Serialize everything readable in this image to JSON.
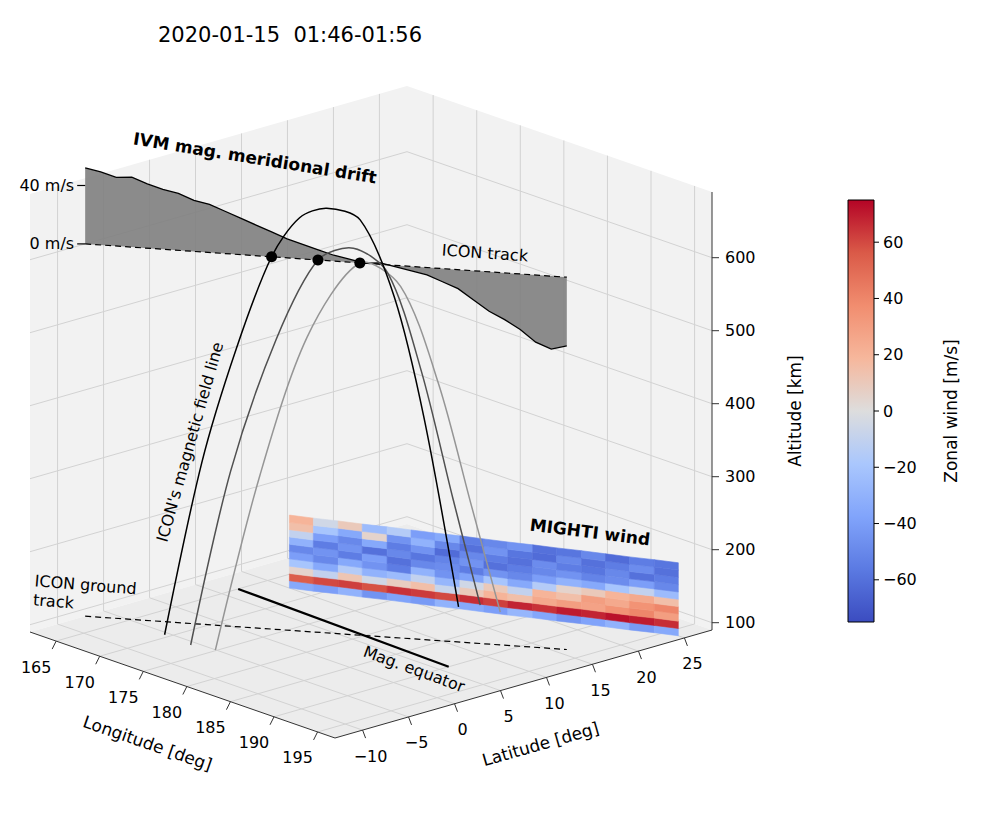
{
  "chart_data": {
    "type": "3d",
    "title": "2020-01-15  01:46-01:56",
    "xlabel": "Longitude [deg]",
    "ylabel": "Latitude [deg]",
    "zlabel": "Altitude [km]",
    "xlim": [
      162,
      197
    ],
    "xticks": [
      165,
      170,
      175,
      180,
      185,
      190,
      195
    ],
    "ylim": [
      -13,
      28
    ],
    "yticks": [
      {
        "value": -10,
        "label": "−10"
      },
      {
        "value": -5,
        "label": "−5"
      },
      0,
      5,
      10,
      15,
      20,
      25
    ],
    "zlim": [
      90,
      690
    ],
    "zticks": [
      100,
      200,
      300,
      400,
      500,
      600
    ],
    "grid": true,
    "ground_track": {
      "label": "ICON ground track",
      "lon": [
        162,
        193
      ],
      "lat": [
        -7,
        16
      ],
      "line_style": "dashed",
      "color": "#000000"
    },
    "icon_track": {
      "label": "ICON track",
      "lon": [
        162,
        193
      ],
      "lat": [
        -7,
        16
      ],
      "altitude": 600,
      "line_style": "dashed",
      "color": "#000000"
    },
    "ivm_drift": {
      "label": "IVM mag. meridional drift",
      "color": "#808080",
      "lon": [
        162,
        163,
        164,
        165,
        166,
        167,
        168,
        169,
        170,
        171,
        172,
        173,
        174,
        175,
        176,
        177,
        178,
        179,
        180,
        181,
        182,
        183,
        184,
        185,
        186,
        187,
        188,
        189,
        190,
        191,
        192,
        193
      ],
      "values": [
        52,
        50,
        47,
        48,
        44,
        41,
        39,
        35,
        33,
        29,
        25,
        21,
        17,
        13,
        10,
        7,
        4,
        2,
        0,
        1,
        -1,
        -3,
        -5,
        -9,
        -13,
        -20,
        -27,
        -32,
        -38,
        -46,
        -50,
        -47
      ],
      "ticks": [
        {
          "value": 0,
          "label": "0 m/s"
        },
        {
          "value": 40,
          "label": "40 m/s"
        }
      ]
    },
    "mag_equator": {
      "label": "Mag. equator",
      "lon": [
        165,
        190
      ],
      "lat": [
        6.8,
        6.0
      ],
      "color": "#000000"
    },
    "field_lines": {
      "label": "ICON's magnetic field line",
      "lines": [
        {
          "color": "#000000",
          "lon": [
            170.8,
            172.0,
            173.0,
            174.0,
            175.0,
            176.0,
            177.2,
            178.5,
            179.6,
            181.0
          ],
          "lat": [
            -6.7,
            -3.8,
            -1.0,
            1.9,
            4.0,
            6.0,
            8.5,
            11.0,
            13.2,
            15.6
          ],
          "altitude": [
            100,
            330,
            480,
            600,
            650,
            660,
            640,
            530,
            360,
            100
          ]
        },
        {
          "color": "#505050",
          "lon": [
            174.0,
            175.0,
            176.0,
            177.0,
            178.0,
            179.0,
            180.0,
            181.0,
            181.8
          ],
          "lat": [
            -6.9,
            -3.5,
            0.5,
            4.1,
            7.0,
            9.8,
            12.5,
            15.0,
            17.2
          ],
          "altitude": [
            100,
            330,
            500,
            600,
            610,
            570,
            430,
            250,
            100
          ]
        },
        {
          "color": "#959595",
          "lon": [
            176.2,
            177.3,
            178.5,
            179.7,
            180.8,
            182.0,
            183.1,
            184.1
          ],
          "lat": [
            -6.3,
            -2.5,
            1.5,
            6.1,
            9.5,
            12.5,
            15.0,
            17.2
          ],
          "altitude": [
            100,
            330,
            510,
            600,
            560,
            420,
            250,
            100
          ]
        }
      ]
    },
    "icon_positions": {
      "lon": [
        174,
        177,
        179.7
      ],
      "lat": [
        1.9,
        4.1,
        6.1
      ],
      "altitude": [
        600,
        600,
        600
      ],
      "color": "#000000",
      "marker": "circle"
    },
    "mighti_wind": {
      "label": "MIGHTI wind",
      "lon_edges": [
        167.5,
        169.3,
        171.1,
        172.9,
        174.7,
        176.5,
        178.3,
        180.1,
        181.9,
        183.7,
        185.5,
        187.3,
        189.1,
        190.9,
        192.7,
        194.5,
        196.3
      ],
      "lat_edges": [
        10.0,
        10.9,
        11.9,
        12.8,
        13.8,
        14.7,
        15.6,
        16.6,
        17.5,
        18.4,
        19.4,
        20.3,
        21.3,
        22.2,
        23.1,
        24.1,
        25.0
      ],
      "altitude_edges": [
        90,
        100,
        110,
        120,
        130,
        140,
        150,
        160,
        170,
        180,
        190
      ],
      "zonal_wind": [
        [
          -35,
          -40,
          -30,
          -45,
          -38,
          -42,
          -30,
          -35,
          -40,
          -28,
          -36,
          -44,
          -38,
          -30,
          -42,
          -35
        ],
        [
          55,
          60,
          62,
          58,
          65,
          63,
          60,
          66,
          62,
          68,
          65,
          70,
          68,
          72,
          70,
          66
        ],
        [
          5,
          -10,
          12,
          -5,
          8,
          15,
          -8,
          10,
          20,
          15,
          25,
          30,
          28,
          35,
          40,
          30
        ],
        [
          -20,
          -35,
          -15,
          -30,
          -25,
          -10,
          -28,
          -5,
          10,
          -10,
          20,
          15,
          30,
          25,
          35,
          40
        ],
        [
          -40,
          -50,
          -35,
          -45,
          -55,
          -30,
          -45,
          -38,
          -20,
          -35,
          -15,
          5,
          10,
          20,
          25,
          15
        ],
        [
          -50,
          -45,
          -55,
          -40,
          -60,
          -50,
          -48,
          -55,
          -45,
          -50,
          -40,
          -30,
          -35,
          -20,
          -10,
          -25
        ],
        [
          -30,
          -55,
          -45,
          -60,
          -50,
          -58,
          -52,
          -45,
          -60,
          -55,
          -50,
          -45,
          -52,
          -48,
          -40,
          -50
        ],
        [
          -10,
          -40,
          -50,
          -35,
          -55,
          -45,
          -62,
          -50,
          -55,
          -60,
          -48,
          -55,
          -58,
          -50,
          -60,
          -55
        ],
        [
          15,
          -20,
          -35,
          5,
          -45,
          -30,
          -50,
          -60,
          -45,
          -58,
          -62,
          -50,
          -60,
          -55,
          -48,
          -60
        ],
        [
          20,
          -5,
          10,
          -25,
          -15,
          -40,
          -35,
          -55,
          -50,
          -45,
          -60,
          -58,
          -50,
          -62,
          -55,
          -58
        ]
      ]
    },
    "colorbar": {
      "label": "Zonal wind [m/s]",
      "range": [
        -75,
        75
      ],
      "ticks": [
        {
          "value": -60,
          "label": "−60"
        },
        {
          "value": -40,
          "label": "−40"
        },
        {
          "value": -20,
          "label": "−20"
        },
        0,
        20,
        40,
        60
      ]
    }
  }
}
